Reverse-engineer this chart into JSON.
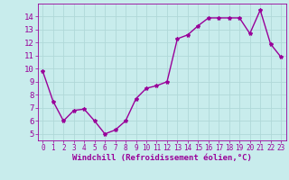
{
  "x": [
    0,
    1,
    2,
    3,
    4,
    5,
    6,
    7,
    8,
    9,
    10,
    11,
    12,
    13,
    14,
    15,
    16,
    17,
    18,
    19,
    20,
    21,
    22,
    23
  ],
  "y": [
    9.8,
    7.5,
    6.0,
    6.8,
    6.9,
    6.0,
    5.0,
    5.3,
    6.0,
    7.7,
    8.5,
    8.7,
    9.0,
    12.3,
    12.6,
    13.3,
    13.9,
    13.9,
    13.9,
    13.9,
    12.7,
    14.5,
    11.9,
    10.9
  ],
  "line_color": "#990099",
  "marker": "*",
  "marker_size": 3,
  "xlabel": "Windchill (Refroidissement éolien,°C)",
  "xlabel_fontsize": 6.5,
  "bg_color": "#c8ecec",
  "grid_color": "#b0d8d8",
  "ylim": [
    4.5,
    15.0
  ],
  "xlim": [
    -0.5,
    23.5
  ],
  "yticks": [
    5,
    6,
    7,
    8,
    9,
    10,
    11,
    12,
    13,
    14
  ],
  "xticks": [
    0,
    1,
    2,
    3,
    4,
    5,
    6,
    7,
    8,
    9,
    10,
    11,
    12,
    13,
    14,
    15,
    16,
    17,
    18,
    19,
    20,
    21,
    22,
    23
  ],
  "ytick_fontsize": 6.5,
  "xtick_fontsize": 5.5,
  "line_width": 1.0
}
